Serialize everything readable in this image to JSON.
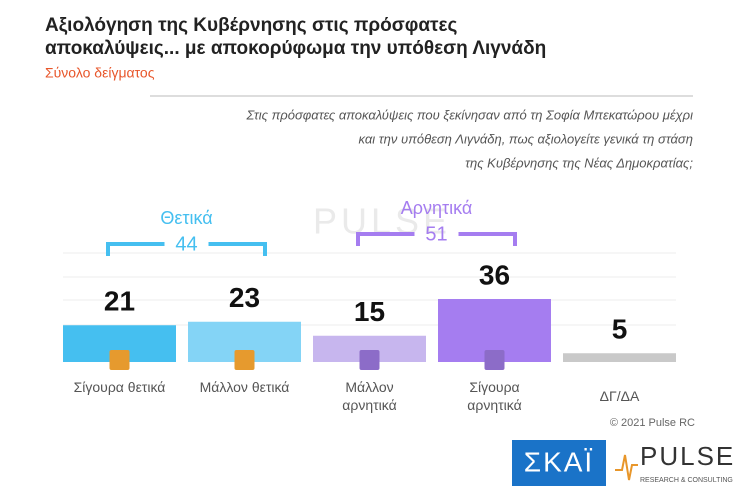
{
  "chart_data": {
    "type": "bar",
    "title": [
      "Αξιολόγηση της Κυβέρνησης στις πρόσφατες",
      "αποκαλύψεις... με αποκορύφωμα την υπόθεση Λιγνάδη"
    ],
    "subtitle": "Σύνολο δείγματος",
    "question": [
      "Στις πρόσφατες αποκαλύψεις που ξεκίνησαν από τη Σοφία Μπεκατώρου μέχρι",
      "και την υπόθεση Λιγνάδη, πως αξιολογείτε γενικά τη στάση",
      "της Κυβέρνησης της Νέας Δημοκρατίας;"
    ],
    "categories": [
      "Σίγουρα θετικά",
      "Μάλλον θετικά",
      "Μάλλον αρνητικά",
      "Σίγουρα αρνητικά",
      "ΔΓ/ΔΑ"
    ],
    "values": [
      21,
      23,
      15,
      36,
      5
    ],
    "colors": [
      "#45bff0",
      "#84d4f6",
      "#c7b6ee",
      "#a57df0",
      "#c9c9c9"
    ],
    "groups": [
      {
        "label": "Θετικά",
        "value": 44,
        "color": "#45bff0"
      },
      {
        "label": "Αρνητικά",
        "value": 51,
        "color": "#a57df0"
      }
    ],
    "watermark": "PULSE",
    "copyright": "© 2021 Pulse RC",
    "logos": [
      "ΣΚΑΪ",
      "PULSE",
      "RESEARCH & CONSULTING"
    ]
  }
}
